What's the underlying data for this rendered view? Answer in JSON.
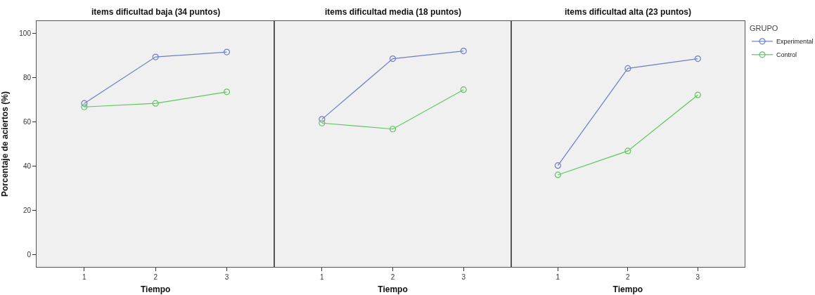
{
  "chart_data": [
    {
      "type": "line",
      "title": "items dificultad baja (34 puntos)",
      "xlabel": "Tiempo",
      "ylabel": "Porcentaje de aciertos (%)",
      "x": [
        1,
        2,
        3
      ],
      "xlim": [
        0.33,
        3.67
      ],
      "xticks": [
        1,
        2,
        3
      ],
      "ylim": [
        -5.6,
        105.5
      ],
      "yticks": [
        0,
        20,
        40,
        60,
        80,
        100
      ],
      "marker": "circle",
      "line_style": "solid",
      "legend": false,
      "series": [
        {
          "color": "#6e7fc6",
          "values": [
            68.3,
            89.3,
            91.5
          ]
        },
        {
          "color": "#5fc65f",
          "values": [
            66.7,
            68.3,
            73.5
          ]
        }
      ]
    },
    {
      "type": "line",
      "title": "items dificultad media (18 puntos)",
      "xlabel": "Tiempo",
      "x": [
        1,
        2,
        3
      ],
      "xlim": [
        0.33,
        3.67
      ],
      "xticks": [
        1,
        2,
        3
      ],
      "ylim": [
        -5.6,
        105.5
      ],
      "tick_labels": "x",
      "marker": "circle",
      "line_style": "solid",
      "legend": false,
      "series": [
        {
          "color": "#6e7fc6",
          "values": [
            61.1,
            88.5,
            92.0
          ]
        },
        {
          "color": "#5fc65f",
          "values": [
            59.4,
            56.7,
            74.5
          ]
        }
      ]
    },
    {
      "type": "line",
      "title": "items dificultad alta (23 puntos)",
      "xlabel": "Tiempo",
      "legend_title": "GRUPO",
      "x": [
        1,
        2,
        3
      ],
      "xlim": [
        0.33,
        3.67
      ],
      "xticks": [
        1,
        2,
        3
      ],
      "ylim": [
        -5.6,
        105.5
      ],
      "tick_labels": "x",
      "marker": "circle",
      "line_style": "solid",
      "legend": "top right",
      "series": [
        {
          "name": "Experimental",
          "color": "#6e7fc6",
          "values": [
            40.2,
            84.1,
            88.5
          ]
        },
        {
          "name": "Control",
          "color": "#5fc65f",
          "values": [
            36.0,
            46.8,
            72.1
          ]
        }
      ]
    }
  ]
}
